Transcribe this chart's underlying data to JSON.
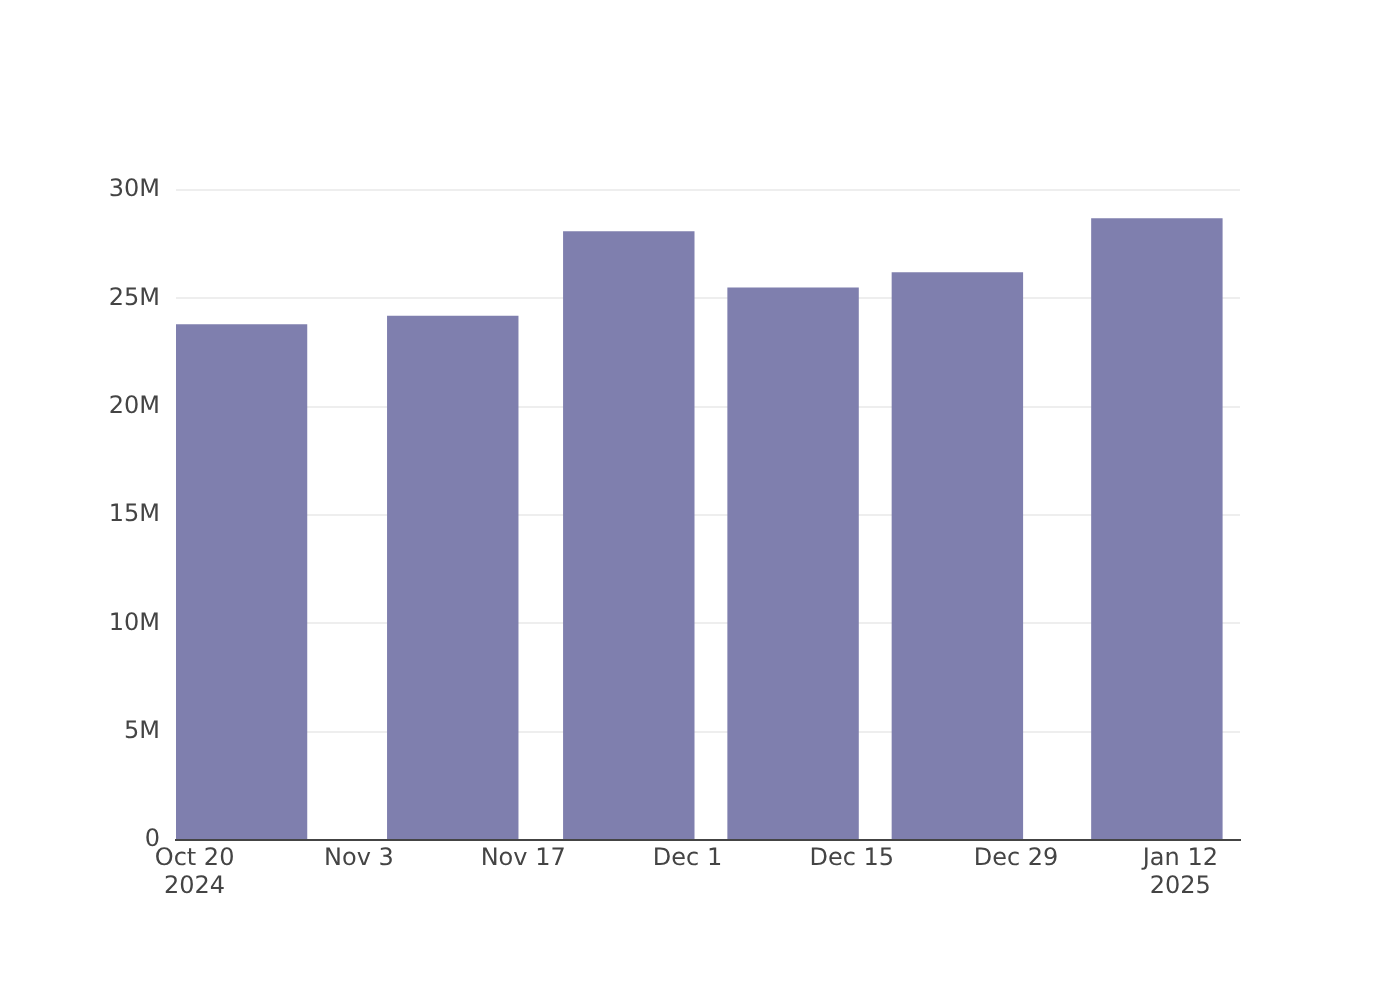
{
  "chart_data": {
    "type": "bar",
    "x": [
      "2024-10-24",
      "2024-11-11",
      "2024-11-26",
      "2024-12-10",
      "2024-12-24",
      "2025-01-10"
    ],
    "values": [
      23800000,
      24200000,
      28100000,
      25500000,
      26200000,
      28700000
    ],
    "color": "#7f7fae",
    "xlim": [
      "2024-10-18T10:00",
      "2025-01-17T02:00"
    ],
    "xticks": [
      {
        "value": "2024-10-20",
        "label": "Oct 20\n2024"
      },
      {
        "value": "2024-11-03",
        "label": "Nov 3"
      },
      {
        "value": "2024-11-17",
        "label": "Nov 17"
      },
      {
        "value": "2024-12-01",
        "label": "Dec 1"
      },
      {
        "value": "2024-12-15",
        "label": "Dec 15"
      },
      {
        "value": "2024-12-29",
        "label": "Dec 29"
      },
      {
        "value": "2025-01-12",
        "label": "Jan 12\n2025"
      }
    ],
    "ylim": [
      0,
      30000000
    ],
    "yticks": [
      {
        "value": 0,
        "label": "0"
      },
      {
        "value": 5000000,
        "label": "5M"
      },
      {
        "value": 10000000,
        "label": "10M"
      },
      {
        "value": 15000000,
        "label": "15M"
      },
      {
        "value": 20000000,
        "label": "20M"
      },
      {
        "value": 25000000,
        "label": "25M"
      },
      {
        "value": 30000000,
        "label": "30M"
      }
    ],
    "grid": "y"
  }
}
